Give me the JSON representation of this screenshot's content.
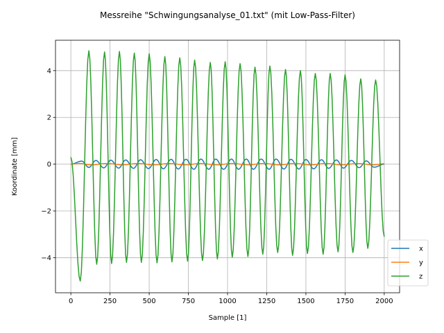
{
  "chart_data": {
    "type": "line",
    "title": "Messreihe \"Schwingungsanalyse_01.txt\" (mit Low-Pass-Filter)",
    "xlabel": "Sample [1]",
    "ylabel": "Koordinate [mm]",
    "xlim": [
      -98,
      2098
    ],
    "ylim": [
      -5.5,
      5.3
    ],
    "xticks": [
      0,
      250,
      500,
      750,
      1000,
      1250,
      1500,
      1750,
      2000
    ],
    "yticks": [
      -4,
      -2,
      0,
      2,
      4
    ],
    "grid": true,
    "legend_position": "lower-right",
    "series": [
      {
        "name": "x",
        "color": "#1f77b4",
        "start_value": 0.0,
        "extrema": [
          [
            70,
            0.13
          ],
          [
            115,
            -0.14
          ],
          [
            160,
            0.16
          ],
          [
            210,
            -0.16
          ],
          [
            255,
            0.17
          ],
          [
            305,
            -0.17
          ],
          [
            350,
            0.18
          ],
          [
            400,
            -0.18
          ],
          [
            445,
            0.19
          ],
          [
            495,
            -0.19
          ],
          [
            545,
            0.2
          ],
          [
            590,
            -0.2
          ],
          [
            640,
            0.21
          ],
          [
            685,
            -0.21
          ],
          [
            735,
            0.21
          ],
          [
            785,
            -0.22
          ],
          [
            830,
            0.22
          ],
          [
            880,
            -0.22
          ],
          [
            925,
            0.22
          ],
          [
            975,
            -0.22
          ],
          [
            1025,
            0.22
          ],
          [
            1070,
            -0.22
          ],
          [
            1120,
            0.22
          ],
          [
            1165,
            -0.22
          ],
          [
            1215,
            0.22
          ],
          [
            1265,
            -0.22
          ],
          [
            1310,
            0.22
          ],
          [
            1360,
            -0.21
          ],
          [
            1405,
            0.21
          ],
          [
            1455,
            -0.21
          ],
          [
            1500,
            0.2
          ],
          [
            1550,
            -0.2
          ],
          [
            1600,
            0.19
          ],
          [
            1645,
            -0.18
          ],
          [
            1695,
            0.18
          ],
          [
            1740,
            -0.17
          ],
          [
            1790,
            0.16
          ],
          [
            1840,
            -0.15
          ],
          [
            1885,
            0.14
          ],
          [
            1935,
            -0.13
          ]
        ],
        "end_value": 0.0
      },
      {
        "name": "y",
        "color": "#ff7f0e",
        "start_value": 0.0,
        "extrema": [
          [
            60,
            0.03
          ],
          [
            130,
            -0.03
          ],
          [
            230,
            0.03
          ],
          [
            330,
            -0.03
          ],
          [
            430,
            0.03
          ],
          [
            530,
            -0.03
          ],
          [
            630,
            0.03
          ],
          [
            730,
            -0.03
          ],
          [
            830,
            0.03
          ],
          [
            930,
            -0.03
          ],
          [
            1030,
            0.03
          ],
          [
            1130,
            -0.03
          ],
          [
            1230,
            0.03
          ],
          [
            1330,
            -0.03
          ],
          [
            1430,
            0.03
          ],
          [
            1530,
            -0.03
          ],
          [
            1630,
            0.03
          ],
          [
            1730,
            -0.03
          ],
          [
            1830,
            0.03
          ],
          [
            1930,
            -0.03
          ]
        ],
        "end_value": 0.02
      },
      {
        "name": "z",
        "color": "#2ca02c",
        "start_value": 0.3,
        "extrema": [
          [
            60,
            -5.0
          ],
          [
            115,
            4.85
          ],
          [
            165,
            -4.28
          ],
          [
            215,
            4.8
          ],
          [
            260,
            -4.25
          ],
          [
            310,
            4.82
          ],
          [
            355,
            -4.2
          ],
          [
            405,
            4.75
          ],
          [
            450,
            -4.2
          ],
          [
            500,
            4.72
          ],
          [
            550,
            -4.22
          ],
          [
            600,
            4.6
          ],
          [
            645,
            -4.18
          ],
          [
            695,
            4.55
          ],
          [
            745,
            -4.15
          ],
          [
            790,
            4.45
          ],
          [
            840,
            -4.12
          ],
          [
            890,
            4.35
          ],
          [
            935,
            -4.05
          ],
          [
            985,
            4.38
          ],
          [
            1030,
            -3.98
          ],
          [
            1080,
            4.3
          ],
          [
            1130,
            -3.95
          ],
          [
            1175,
            4.15
          ],
          [
            1225,
            -3.85
          ],
          [
            1270,
            4.2
          ],
          [
            1320,
            -3.78
          ],
          [
            1370,
            4.05
          ],
          [
            1415,
            -3.9
          ],
          [
            1465,
            4.0
          ],
          [
            1510,
            -3.82
          ],
          [
            1560,
            3.88
          ],
          [
            1610,
            -3.85
          ],
          [
            1655,
            3.88
          ],
          [
            1705,
            -3.75
          ],
          [
            1750,
            3.82
          ],
          [
            1800,
            -3.78
          ],
          [
            1850,
            3.65
          ],
          [
            1895,
            -3.6
          ],
          [
            1945,
            3.6
          ]
        ],
        "end_value": -3.1
      }
    ]
  }
}
